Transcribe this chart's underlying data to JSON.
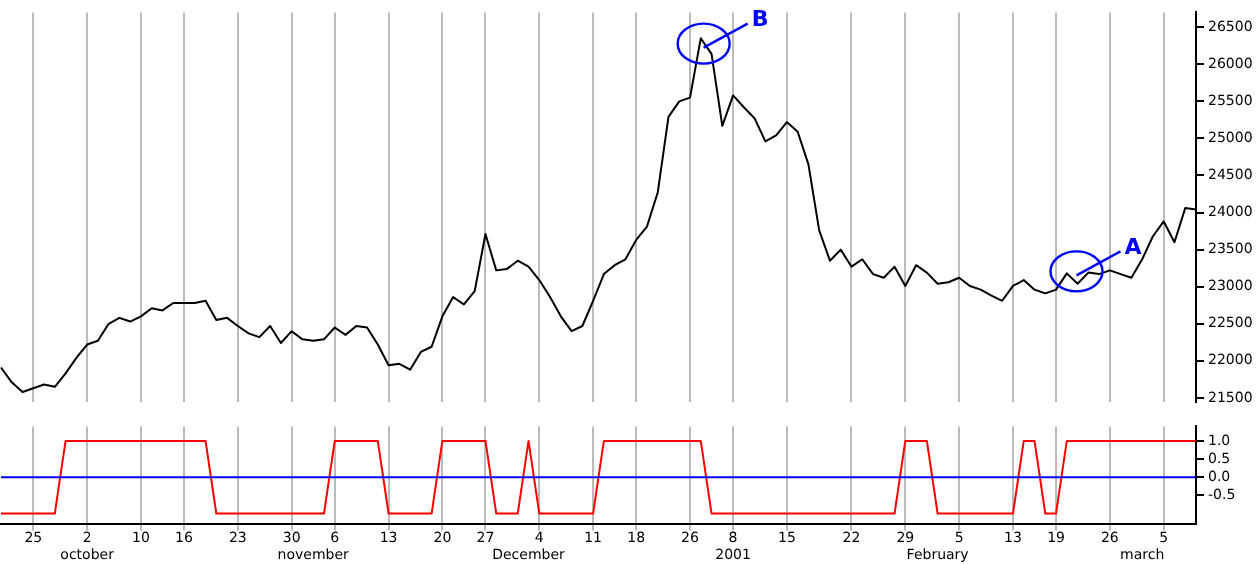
{
  "chart_data": [
    {
      "type": "line",
      "categories": [
        null,
        null,
        null,
        null,
        null,
        null,
        null,
        null,
        null,
        null,
        null,
        null,
        null,
        null,
        null,
        null,
        null,
        null,
        null,
        null,
        null,
        null,
        null,
        null,
        null,
        null,
        null,
        null,
        null,
        null,
        null,
        null,
        null,
        null,
        null,
        null,
        null,
        null,
        null,
        null,
        null,
        null,
        null,
        null,
        null,
        null,
        null,
        null,
        null,
        null,
        null,
        null,
        null,
        null,
        null,
        null,
        null,
        null,
        null,
        null,
        null,
        null,
        null,
        null,
        null,
        null,
        null,
        null,
        null,
        null,
        null,
        null,
        null,
        null,
        null,
        null,
        null,
        null,
        null,
        null,
        null,
        null,
        null,
        null,
        null,
        null,
        null,
        null,
        null,
        null,
        null,
        null,
        null,
        null,
        null,
        null,
        null,
        null,
        null,
        null,
        null,
        null,
        null,
        null,
        null,
        null,
        null,
        null,
        null,
        null,
        null,
        null
      ],
      "series": [
        {
          "color": "#000000",
          "values": [
            21910,
            21710,
            21580,
            21630,
            21680,
            21650,
            21830,
            22040,
            22220,
            22270,
            22500,
            22580,
            22530,
            22600,
            22710,
            22680,
            22780,
            22780,
            22780,
            22810,
            22550,
            22580,
            22470,
            22370,
            22320,
            22470,
            22240,
            22400,
            22290,
            22270,
            22290,
            22450,
            22350,
            22470,
            22450,
            22220,
            21940,
            21960,
            21880,
            22120,
            22190,
            22600,
            22860,
            22760,
            22940,
            23710,
            23220,
            23240,
            23350,
            23270,
            23090,
            22860,
            22600,
            22400,
            22470,
            22810,
            23170,
            23290,
            23370,
            23630,
            23810,
            24270,
            25290,
            25500,
            25550,
            26350,
            26140,
            25170,
            25580,
            25420,
            25270,
            24960,
            25040,
            25220,
            25090,
            24650,
            23760,
            23350,
            23500,
            23270,
            23370,
            23170,
            23120,
            23270,
            23010,
            23290,
            23190,
            23040,
            23060,
            23120,
            23010,
            22960,
            22880,
            22810,
            23010,
            23090,
            22960,
            22910,
            22960,
            23180,
            23040,
            23190,
            23170,
            23220,
            23170,
            23120,
            23370,
            23680,
            23880,
            23600,
            24060,
            24040
          ]
        }
      ],
      "ylim": [
        21450,
        26700
      ],
      "yticks": [
        21500,
        22000,
        22500,
        23000,
        23500,
        24000,
        24500,
        25000,
        25500,
        26000,
        26500
      ],
      "grid": "x",
      "tick_labels": "y",
      "marker": "none",
      "annotations": [
        "B",
        "A"
      ]
    },
    {
      "type": "line",
      "categories": [
        null,
        null,
        null,
        "25",
        null,
        null,
        null,
        null,
        "2\noctober",
        null,
        null,
        null,
        null,
        "10",
        null,
        null,
        null,
        "16",
        null,
        null,
        null,
        null,
        "23",
        null,
        null,
        null,
        null,
        "30",
        null,
        "\nnovember",
        null,
        "6",
        null,
        null,
        null,
        null,
        "13",
        null,
        null,
        null,
        null,
        "20",
        null,
        null,
        null,
        "27",
        null,
        null,
        null,
        "\nDecember",
        "4",
        null,
        null,
        null,
        null,
        "11",
        null,
        null,
        null,
        "18",
        null,
        null,
        null,
        null,
        "26",
        null,
        null,
        null,
        "8\n2001",
        null,
        null,
        null,
        null,
        "15",
        null,
        null,
        null,
        null,
        null,
        "22",
        null,
        null,
        null,
        null,
        "29",
        null,
        null,
        "\nFebruary",
        null,
        "5",
        null,
        null,
        null,
        null,
        "13",
        null,
        null,
        null,
        "19",
        null,
        null,
        null,
        null,
        "26",
        null,
        null,
        "\nmarch",
        null,
        "5",
        null,
        null,
        null
      ],
      "series": [
        {
          "color": "#ff0000",
          "values": [
            -1,
            -1,
            -1,
            -1,
            -1,
            -1,
            1,
            1,
            1,
            1,
            1,
            1,
            1,
            1,
            1,
            1,
            1,
            1,
            1,
            1,
            -1,
            -1,
            -1,
            -1,
            -1,
            -1,
            -1,
            -1,
            -1,
            -1,
            -1,
            1,
            1,
            1,
            1,
            1,
            -1,
            -1,
            -1,
            -1,
            -1,
            1,
            1,
            1,
            1,
            1,
            -1,
            -1,
            -1,
            1,
            -1,
            -1,
            -1,
            -1,
            -1,
            -1,
            1,
            1,
            1,
            1,
            1,
            1,
            1,
            1,
            1,
            1,
            -1,
            -1,
            -1,
            -1,
            -1,
            -1,
            -1,
            -1,
            -1,
            -1,
            -1,
            -1,
            -1,
            -1,
            -1,
            -1,
            -1,
            -1,
            1,
            1,
            1,
            -1,
            -1,
            -1,
            -1,
            -1,
            -1,
            -1,
            -1,
            1,
            1,
            -1,
            -1,
            1,
            1,
            1,
            1,
            1,
            1,
            1,
            1,
            1,
            1,
            1,
            1,
            1
          ]
        }
      ],
      "ylim": [
        -1.3,
        1.4
      ],
      "yticks": [
        {
          "value": 1,
          "label": "1.0"
        },
        {
          "value": 0.5,
          "label": "0.5"
        },
        {
          "value": 0,
          "label": "0.0"
        },
        {
          "value": -0.5,
          "label": "-0.5"
        }
      ],
      "grid": "x",
      "marker": "none",
      "ref_lines": [
        {
          "axis": "y",
          "value": 0,
          "color": "#0000ff"
        }
      ]
    }
  ]
}
